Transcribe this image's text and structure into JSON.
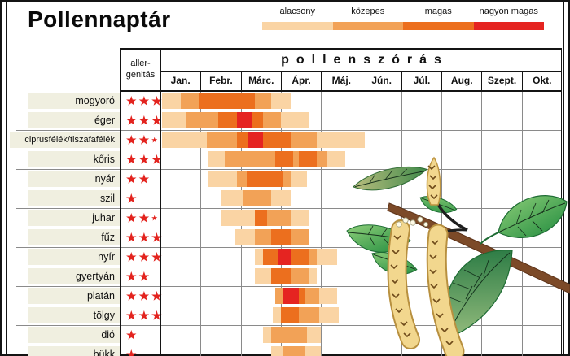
{
  "title": "Pollennaptár",
  "table": {
    "allergenicity_line1": "aller-",
    "allergenicity_line2": "genitás",
    "spanning_header": "pollenszórás"
  },
  "chart_data": {
    "type": "heatmap",
    "title": "Pollennaptár",
    "x_axis": {
      "label": "pollenszórás",
      "categories": [
        "Jan.",
        "Febr.",
        "Márc.",
        "Ápr.",
        "Máj.",
        "Jún.",
        "Júl.",
        "Aug.",
        "Szept.",
        "Okt."
      ],
      "range_months": [
        0,
        10
      ]
    },
    "intensity_levels": [
      {
        "level": 1,
        "label": "alacsony",
        "color": "#fad4a4"
      },
      {
        "level": 2,
        "label": "közepes",
        "color": "#f2a257"
      },
      {
        "level": 3,
        "label": "magas",
        "color": "#ec6f1e"
      },
      {
        "level": 4,
        "label": "nagyon magas",
        "color": "#e52421"
      }
    ],
    "rows": [
      {
        "name": "mogyoró",
        "stars": 3,
        "half_star": false,
        "segments": [
          {
            "from": 0.05,
            "to": 0.5,
            "level": 1
          },
          {
            "from": 0.5,
            "to": 0.95,
            "level": 2
          },
          {
            "from": 0.95,
            "to": 2.35,
            "level": 3
          },
          {
            "from": 2.35,
            "to": 2.75,
            "level": 2
          },
          {
            "from": 2.75,
            "to": 3.25,
            "level": 1
          }
        ]
      },
      {
        "name": "éger",
        "stars": 3,
        "half_star": false,
        "segments": [
          {
            "from": 0.05,
            "to": 0.65,
            "level": 1
          },
          {
            "from": 0.65,
            "to": 1.45,
            "level": 2
          },
          {
            "from": 1.45,
            "to": 1.9,
            "level": 3
          },
          {
            "from": 1.9,
            "to": 2.3,
            "level": 4
          },
          {
            "from": 2.3,
            "to": 2.55,
            "level": 3
          },
          {
            "from": 2.55,
            "to": 3.0,
            "level": 2
          },
          {
            "from": 3.0,
            "to": 3.7,
            "level": 1
          }
        ]
      },
      {
        "name": "ciprusfélék/tiszafafélék",
        "stars": 2,
        "half_star": true,
        "segments": [
          {
            "from": 0.05,
            "to": 1.15,
            "level": 1
          },
          {
            "from": 1.15,
            "to": 1.9,
            "level": 2
          },
          {
            "from": 1.9,
            "to": 2.2,
            "level": 3
          },
          {
            "from": 2.2,
            "to": 2.55,
            "level": 4
          },
          {
            "from": 2.55,
            "to": 3.25,
            "level": 3
          },
          {
            "from": 3.25,
            "to": 3.9,
            "level": 2
          },
          {
            "from": 3.9,
            "to": 5.1,
            "level": 1
          }
        ]
      },
      {
        "name": "kőris",
        "stars": 3,
        "half_star": false,
        "segments": [
          {
            "from": 1.2,
            "to": 1.6,
            "level": 1
          },
          {
            "from": 1.6,
            "to": 2.85,
            "level": 2
          },
          {
            "from": 2.85,
            "to": 3.3,
            "level": 3
          },
          {
            "from": 3.3,
            "to": 3.45,
            "level": 2
          },
          {
            "from": 3.45,
            "to": 3.9,
            "level": 3
          },
          {
            "from": 3.9,
            "to": 4.15,
            "level": 2
          },
          {
            "from": 4.15,
            "to": 4.6,
            "level": 1
          }
        ]
      },
      {
        "name": "nyár",
        "stars": 2,
        "half_star": false,
        "segments": [
          {
            "from": 1.2,
            "to": 1.9,
            "level": 1
          },
          {
            "from": 1.9,
            "to": 2.15,
            "level": 2
          },
          {
            "from": 2.15,
            "to": 3.05,
            "level": 3
          },
          {
            "from": 3.05,
            "to": 3.25,
            "level": 2
          },
          {
            "from": 3.25,
            "to": 3.65,
            "level": 1
          }
        ]
      },
      {
        "name": "szil",
        "stars": 1,
        "half_star": false,
        "segments": [
          {
            "from": 1.5,
            "to": 2.05,
            "level": 1
          },
          {
            "from": 2.05,
            "to": 2.75,
            "level": 2
          },
          {
            "from": 2.75,
            "to": 3.25,
            "level": 1
          }
        ]
      },
      {
        "name": "juhar",
        "stars": 2,
        "half_star": true,
        "segments": [
          {
            "from": 1.5,
            "to": 2.35,
            "level": 1
          },
          {
            "from": 2.35,
            "to": 2.65,
            "level": 3
          },
          {
            "from": 2.65,
            "to": 3.25,
            "level": 2
          },
          {
            "from": 3.25,
            "to": 3.7,
            "level": 1
          }
        ]
      },
      {
        "name": "fűz",
        "stars": 3,
        "half_star": false,
        "segments": [
          {
            "from": 1.85,
            "to": 2.35,
            "level": 1
          },
          {
            "from": 2.35,
            "to": 2.75,
            "level": 2
          },
          {
            "from": 2.75,
            "to": 3.25,
            "level": 3
          },
          {
            "from": 3.25,
            "to": 3.7,
            "level": 2
          }
        ]
      },
      {
        "name": "nyír",
        "stars": 3,
        "half_star": false,
        "segments": [
          {
            "from": 2.35,
            "to": 2.55,
            "level": 1
          },
          {
            "from": 2.55,
            "to": 2.95,
            "level": 3
          },
          {
            "from": 2.95,
            "to": 3.25,
            "level": 4
          },
          {
            "from": 3.25,
            "to": 3.7,
            "level": 3
          },
          {
            "from": 3.7,
            "to": 3.9,
            "level": 2
          },
          {
            "from": 3.9,
            "to": 4.4,
            "level": 1
          }
        ]
      },
      {
        "name": "gyertyán",
        "stars": 2,
        "half_star": false,
        "segments": [
          {
            "from": 2.35,
            "to": 2.75,
            "level": 1
          },
          {
            "from": 2.75,
            "to": 3.25,
            "level": 3
          },
          {
            "from": 3.25,
            "to": 3.7,
            "level": 2
          },
          {
            "from": 3.7,
            "to": 3.9,
            "level": 1
          }
        ]
      },
      {
        "name": "platán",
        "stars": 3,
        "half_star": false,
        "segments": [
          {
            "from": 2.85,
            "to": 3.05,
            "level": 2
          },
          {
            "from": 3.05,
            "to": 3.45,
            "level": 4
          },
          {
            "from": 3.45,
            "to": 3.6,
            "level": 3
          },
          {
            "from": 3.6,
            "to": 3.95,
            "level": 2
          },
          {
            "from": 3.95,
            "to": 4.4,
            "level": 1
          }
        ]
      },
      {
        "name": "tölgy",
        "stars": 3,
        "half_star": false,
        "segments": [
          {
            "from": 2.8,
            "to": 3.0,
            "level": 1
          },
          {
            "from": 3.0,
            "to": 3.45,
            "level": 3
          },
          {
            "from": 3.45,
            "to": 3.95,
            "level": 2
          },
          {
            "from": 3.95,
            "to": 4.45,
            "level": 1
          }
        ]
      },
      {
        "name": "dió",
        "stars": 1,
        "half_star": false,
        "segments": [
          {
            "from": 2.55,
            "to": 2.75,
            "level": 1
          },
          {
            "from": 2.75,
            "to": 3.65,
            "level": 2
          },
          {
            "from": 3.65,
            "to": 4.0,
            "level": 1
          }
        ]
      },
      {
        "name": "bükk",
        "stars": 1,
        "half_star": false,
        "segments": [
          {
            "from": 2.75,
            "to": 3.05,
            "level": 1
          },
          {
            "from": 3.05,
            "to": 3.6,
            "level": 2
          },
          {
            "from": 3.6,
            "to": 4.0,
            "level": 1
          }
        ]
      }
    ]
  },
  "illustration": {
    "name": "birch-branch-with-catkins"
  }
}
